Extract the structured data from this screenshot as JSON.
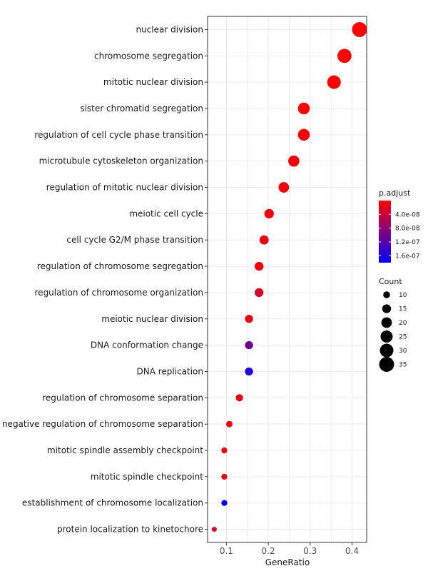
{
  "chart_data": {
    "type": "scatter",
    "title": "",
    "xlabel": "GeneRatio",
    "ylabel": "",
    "xlim": [
      0.055,
      0.435
    ],
    "x_ticks": [
      0.1,
      0.2,
      0.3,
      0.4
    ],
    "x_tick_labels": [
      "0.1",
      "0.2",
      "0.3",
      "0.4"
    ],
    "grid": true,
    "categories": [
      "nuclear division",
      "chromosome segregation",
      "mitotic nuclear division",
      "sister chromatid segregation",
      "regulation of cell cycle phase transition",
      "microtubule cytoskeleton organization",
      "regulation of mitotic nuclear division",
      "meiotic cell cycle",
      "cell cycle G2/M phase transition",
      "regulation of chromosome segregation",
      "regulation of chromosome organization",
      "meiotic nuclear division",
      "DNA conformation change",
      "DNA replication",
      "regulation of chromosome separation",
      "negative regulation of chromosome separation",
      "mitotic spindle assembly checkpoint",
      "mitotic spindle checkpoint",
      "establishment of chromosome localization",
      "protein localization to kinetochore"
    ],
    "points": [
      {
        "x": 0.418,
        "count": 35,
        "p_adjust": 1e-10
      },
      {
        "x": 0.382,
        "count": 32,
        "p_adjust": 1e-10
      },
      {
        "x": 0.357,
        "count": 30,
        "p_adjust": 2e-09
      },
      {
        "x": 0.285,
        "count": 24,
        "p_adjust": 1e-09
      },
      {
        "x": 0.285,
        "count": 24,
        "p_adjust": 3e-09
      },
      {
        "x": 0.261,
        "count": 22,
        "p_adjust": 5e-09
      },
      {
        "x": 0.237,
        "count": 20,
        "p_adjust": 1e-08
      },
      {
        "x": 0.202,
        "count": 17,
        "p_adjust": 1e-08
      },
      {
        "x": 0.19,
        "count": 16,
        "p_adjust": 1.5e-08
      },
      {
        "x": 0.178,
        "count": 15,
        "p_adjust": 1e-08
      },
      {
        "x": 0.178,
        "count": 15,
        "p_adjust": 3e-08
      },
      {
        "x": 0.154,
        "count": 13,
        "p_adjust": 1.5e-08
      },
      {
        "x": 0.154,
        "count": 13,
        "p_adjust": 1e-07
      },
      {
        "x": 0.154,
        "count": 13,
        "p_adjust": 1.6e-07
      },
      {
        "x": 0.131,
        "count": 11,
        "p_adjust": 1.5e-08
      },
      {
        "x": 0.107,
        "count": 9,
        "p_adjust": 1e-08
      },
      {
        "x": 0.095,
        "count": 8,
        "p_adjust": 1e-08
      },
      {
        "x": 0.095,
        "count": 8,
        "p_adjust": 1e-08
      },
      {
        "x": 0.095,
        "count": 8,
        "p_adjust": 1.8e-07
      },
      {
        "x": 0.071,
        "count": 6,
        "p_adjust": 2.5e-08
      }
    ],
    "legend": {
      "color_title": "p.adjust",
      "color_range": [
        1e-10,
        1.8e-07
      ],
      "color_low_value_color": "#ff0000",
      "color_high_value_color": "#0000ff",
      "color_ticks": [
        {
          "value": 4e-08,
          "label": "4.0e-08"
        },
        {
          "value": 8e-08,
          "label": "8.0e-08"
        },
        {
          "value": 1.2e-07,
          "label": "1.2e-07"
        },
        {
          "value": 1.6e-07,
          "label": "1.6e-07"
        }
      ],
      "size_title": "Count",
      "size_entries": [
        10,
        15,
        20,
        25,
        30,
        35
      ],
      "size_labels": [
        "10",
        "15",
        "20",
        "25",
        "30",
        "35"
      ],
      "placement": "right"
    },
    "colors": {
      "panel_border": "#333333",
      "grid": "#ebebeb",
      "background": "#ffffff"
    }
  }
}
